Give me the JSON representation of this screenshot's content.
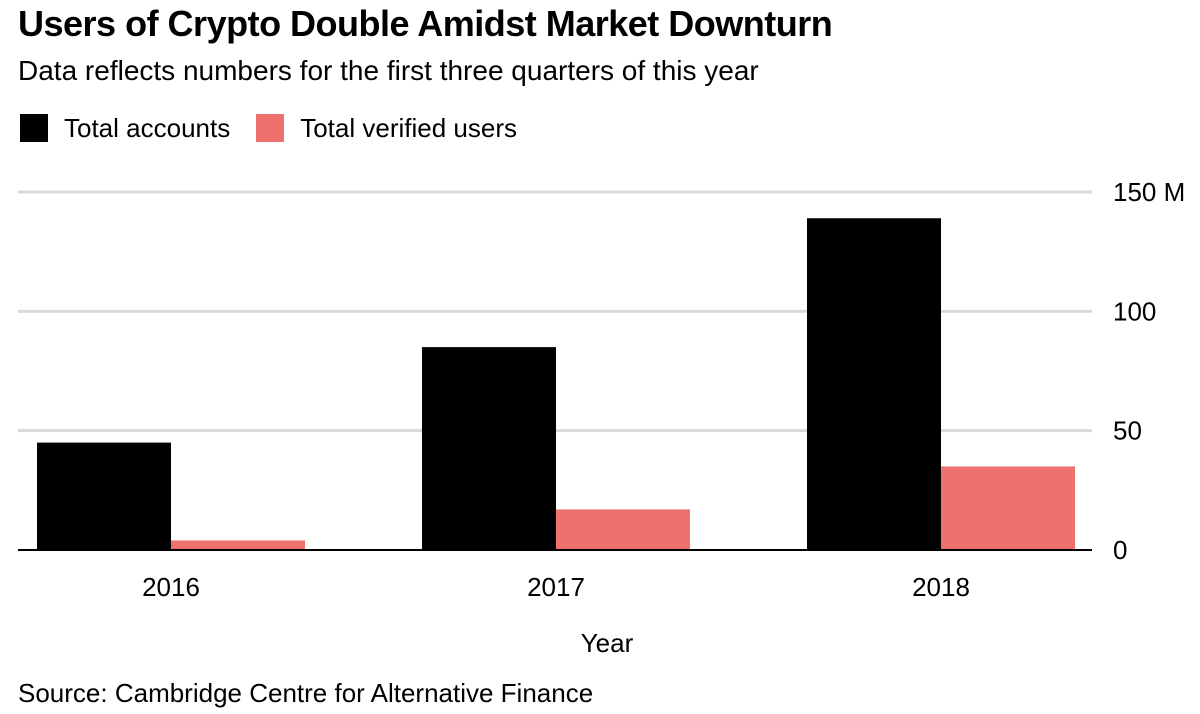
{
  "chart_data": {
    "type": "bar",
    "title": "Users of Crypto Double Amidst Market Downturn",
    "subtitle": "Data reflects numbers for the first three quarters of this year",
    "xlabel": "Year",
    "ylabel": "",
    "categories": [
      "2016",
      "2017",
      "2018"
    ],
    "series": [
      {
        "name": "Total accounts",
        "color": "#000000",
        "values": [
          45,
          85,
          139
        ]
      },
      {
        "name": "Total verified users",
        "color": "#ed716c",
        "values": [
          4,
          17,
          35
        ]
      }
    ],
    "ylim": [
      0,
      150
    ],
    "yticks": [
      0,
      50,
      100,
      150
    ],
    "ytick_labels": [
      "0",
      "50",
      "100",
      "150 M"
    ],
    "y_axis_side": "right",
    "grid": true,
    "legend_position": "top-left",
    "source": "Source: Cambridge Centre for Alternative Finance"
  }
}
